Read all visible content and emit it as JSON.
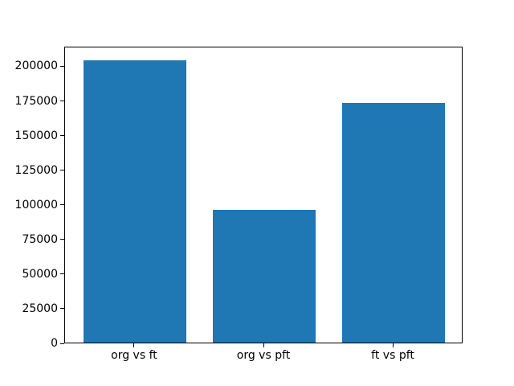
{
  "figure": {
    "background_color": "#ffffff",
    "spine_color": "#000000",
    "text_color": "#000000"
  },
  "chart_data": {
    "type": "bar",
    "title": "",
    "xlabel": "",
    "ylabel": "",
    "categories": [
      "org vs ft",
      "org vs pft",
      "ft vs pft"
    ],
    "values": [
      204000,
      95500,
      173000
    ],
    "bar_color": "#1f77b4",
    "bar_width_fraction": 0.8,
    "ylim": [
      0,
      214200
    ],
    "yticks": [
      0,
      25000,
      50000,
      75000,
      100000,
      125000,
      150000,
      175000,
      200000
    ],
    "ytick_labels": [
      "0",
      "25000",
      "50000",
      "75000",
      "100000",
      "125000",
      "150000",
      "175000",
      "200000"
    ],
    "grid": false,
    "legend": null
  }
}
